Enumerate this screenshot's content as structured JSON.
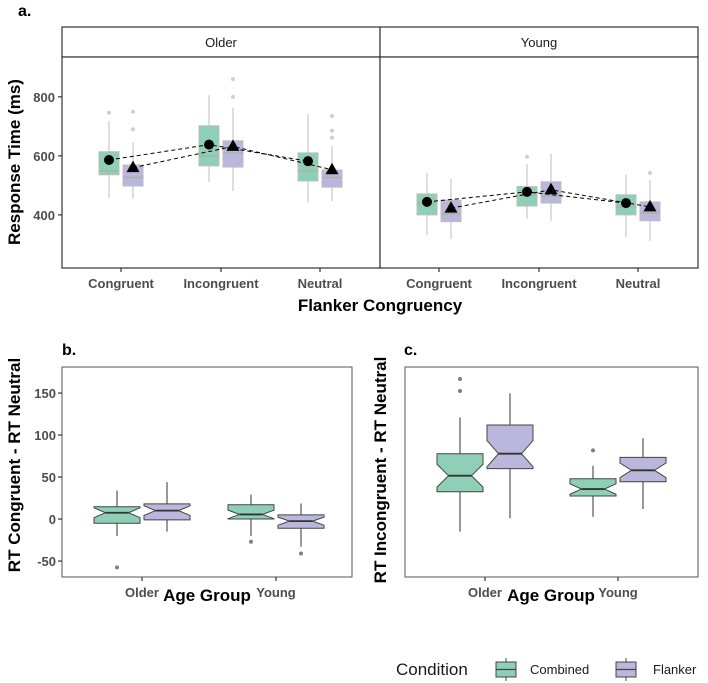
{
  "colors": {
    "Combined": "#8ecfb8",
    "Flanker": "#bbb6db"
  },
  "legend": {
    "title": "Condition",
    "items": [
      "Combined",
      "Flanker"
    ],
    "position": "bottom-right"
  },
  "chart_data": [
    {
      "tag": "a.",
      "type": "box",
      "title": "",
      "xlabel": "Flanker Congruency",
      "ylabel": "Response Time (ms)",
      "ylim": [
        220,
        935
      ],
      "yticks": [
        400,
        600,
        800
      ],
      "facets": [
        "Older",
        "Young"
      ],
      "categories": [
        "Congruent",
        "Incongruent",
        "Neutral"
      ],
      "series": [
        {
          "name": "Combined",
          "mean_marker": "circle",
          "facets": {
            "Older": [
              {
                "q1": 536,
                "median": 549,
                "q3": 614,
                "low": 458,
                "high": 719,
                "outliers": [
                  746
                ],
                "mean": 586
              },
              {
                "q1": 566,
                "median": 600,
                "q3": 702,
                "low": 512,
                "high": 805,
                "outliers": [],
                "mean": 638
              },
              {
                "q1": 515,
                "median": 549,
                "q3": 610,
                "low": 444,
                "high": 742,
                "outliers": [],
                "mean": 582
              }
            ],
            "Young": [
              {
                "q1": 400,
                "median": 441,
                "q3": 471,
                "low": 332,
                "high": 542,
                "outliers": [],
                "mean": 444
              },
              {
                "q1": 430,
                "median": 467,
                "q3": 496,
                "low": 387,
                "high": 573,
                "outliers": [
                  597
                ],
                "mean": 478
              },
              {
                "q1": 400,
                "median": 427,
                "q3": 468,
                "low": 326,
                "high": 536,
                "outliers": [],
                "mean": 440
              }
            ]
          }
        },
        {
          "name": "Flanker",
          "mean_marker": "triangle",
          "facets": {
            "Older": [
              {
                "q1": 498,
                "median": 527,
                "q3": 569,
                "low": 455,
                "high": 645,
                "outliers": [
                  690,
                  750
                ],
                "mean": 560
              },
              {
                "q1": 562,
                "median": 609,
                "q3": 651,
                "low": 481,
                "high": 764,
                "outliers": [
                  800,
                  860
                ],
                "mean": 632
              },
              {
                "q1": 494,
                "median": 527,
                "q3": 552,
                "low": 446,
                "high": 634,
                "outliers": [
                  662,
                  685,
                  735
                ],
                "mean": 553
              }
            ],
            "Young": [
              {
                "q1": 377,
                "median": 403,
                "q3": 450,
                "low": 318,
                "high": 522,
                "outliers": [],
                "mean": 423
              },
              {
                "q1": 440,
                "median": 464,
                "q3": 512,
                "low": 380,
                "high": 607,
                "outliers": [],
                "mean": 485
              },
              {
                "q1": 380,
                "median": 406,
                "q3": 444,
                "low": 312,
                "high": 519,
                "outliers": [
                  542
                ],
                "mean": 427
              }
            ]
          }
        }
      ]
    },
    {
      "tag": "b.",
      "type": "box",
      "notched": true,
      "xlabel": "Age Group",
      "ylabel": "RT Congruent - RT Neutral",
      "ylim": [
        -69,
        181
      ],
      "yticks": [
        -50,
        0,
        50,
        100,
        150
      ],
      "categories": [
        "Older",
        "Young"
      ],
      "series": [
        {
          "name": "Combined",
          "boxes": [
            {
              "q1": -5,
              "median": 7.5,
              "q3": 14.6,
              "low": -20,
              "high": 34,
              "outliers": [
                -57.5
              ]
            },
            {
              "q1": 0,
              "median": 5.5,
              "q3": 17,
              "low": -20,
              "high": 29,
              "outliers": [
                -27
              ]
            }
          ]
        },
        {
          "name": "Flanker",
          "boxes": [
            {
              "q1": -1,
              "median": 10,
              "q3": 18,
              "low": -15,
              "high": 44,
              "outliers": []
            },
            {
              "q1": -11,
              "median": -2.5,
              "q3": 5,
              "low": -33,
              "high": 18.5,
              "outliers": [
                -41
              ]
            }
          ]
        }
      ]
    },
    {
      "tag": "c.",
      "type": "box",
      "notched": true,
      "xlabel": "Age Group",
      "ylabel": "RT Incongruent - RT Neutral",
      "ylim": [
        -69,
        181
      ],
      "yticks": [],
      "categories": [
        "Older",
        "Young"
      ],
      "series": [
        {
          "name": "Combined",
          "boxes": [
            {
              "q1": 32.5,
              "median": 51.6,
              "q3": 77.8,
              "low": -15,
              "high": 121,
              "outliers": [
                152.4,
                166.7
              ]
            },
            {
              "q1": 27.4,
              "median": 35.7,
              "q3": 48,
              "low": 2.8,
              "high": 63.5,
              "outliers": [
                81.8
              ]
            }
          ]
        },
        {
          "name": "Flanker",
          "boxes": [
            {
              "q1": 60,
              "median": 77.8,
              "q3": 112,
              "low": 1,
              "high": 149.6,
              "outliers": []
            },
            {
              "q1": 44.4,
              "median": 58,
              "q3": 73.4,
              "low": 11.9,
              "high": 96.4,
              "outliers": []
            }
          ]
        }
      ]
    }
  ]
}
